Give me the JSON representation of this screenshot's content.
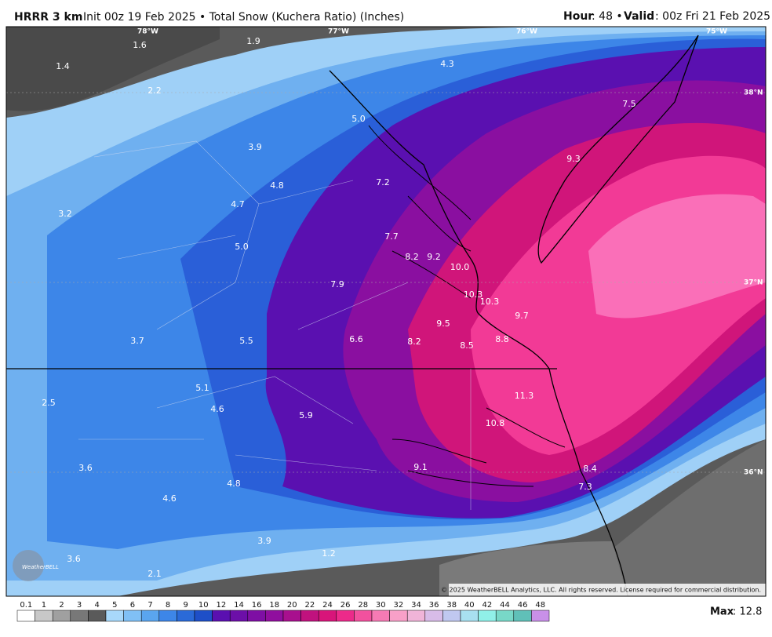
{
  "header": {
    "model": "HRRR 3 km",
    "init": "Init 00z 19 Feb 2025 • Total Snow (Kuchera Ratio) (Inches)",
    "hour_label": "Hour",
    "hour_value": ": 48 •",
    "valid_label": "Valid",
    "valid_value": ": 00z Fri 21 Feb 2025"
  },
  "map": {
    "longitudes": [
      "78°W",
      "77°W",
      "76°W",
      "75°W"
    ],
    "latitudes": [
      "38°N",
      "37°N",
      "36°N"
    ],
    "point_values": [
      "1.6",
      "1.9",
      "1.4",
      "4.3",
      "2.2",
      "7.5",
      "5.0",
      "3.9",
      "9.3",
      "7.2",
      "4.8",
      "4.7",
      "3.2",
      "7.7",
      "5.0",
      "8.2",
      "9.2",
      "10.0",
      "7.9",
      "10.3",
      "10.3",
      "9.7",
      "9.5",
      "8.8",
      "3.7",
      "5.5",
      "6.6",
      "8.2",
      "8.5",
      "5.1",
      "11.3",
      "2.5",
      "4.6",
      "5.9",
      "10.8",
      "3.6",
      "9.1",
      "8.4",
      "4.8",
      "7.3",
      "4.6",
      "3.9",
      "1.2",
      "3.6",
      "2.1"
    ],
    "copyright": "© 2025 WeatherBELL Analytics, LLC. All rights reserved. License required for commercial distribution.",
    "logo": "WeatherBELL"
  },
  "colorbar": {
    "labels": [
      "0.1",
      "1",
      "2",
      "3",
      "4",
      "5",
      "6",
      "7",
      "8",
      "9",
      "10",
      "12",
      "14",
      "16",
      "18",
      "20",
      "22",
      "24",
      "26",
      "28",
      "30",
      "32",
      "34",
      "36",
      "38",
      "40",
      "42",
      "44",
      "46",
      "48"
    ]
  },
  "footer": {
    "max_label": "Max",
    "max_value": ": 12.8"
  }
}
